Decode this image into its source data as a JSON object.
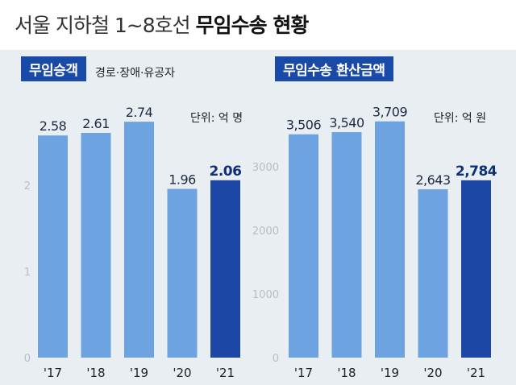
{
  "title": {
    "normal": "서울 지하철 1~8호선",
    "bold": "무임수송 현황"
  },
  "colors": {
    "bar": "#6ea3e1",
    "highlight": "#1c47a5",
    "tag": "#1a4aa8",
    "panel_bg": "#e9eef3",
    "axis_text": "#b8bec6"
  },
  "chart_data": [
    {
      "type": "bar",
      "title": "무임승객",
      "subtitle": "경로·장애·유공자",
      "unit": "단위: 억 명",
      "categories": [
        "'17",
        "'18",
        "'19",
        "'20",
        "'21"
      ],
      "values": [
        2.58,
        2.61,
        2.74,
        1.96,
        2.06
      ],
      "value_labels": [
        "2.58",
        "2.61",
        "2.74",
        "1.96",
        "2.06"
      ],
      "highlight_index": 4,
      "yticks": [
        0,
        1,
        2
      ],
      "ylim": [
        0,
        2.9
      ],
      "grid": false
    },
    {
      "type": "bar",
      "title": "무임수송 환산금액",
      "subtitle": "",
      "unit": "단위: 억 원",
      "categories": [
        "'17",
        "'18",
        "'19",
        "'20",
        "'21"
      ],
      "values": [
        3506,
        3540,
        3709,
        2643,
        2784
      ],
      "value_labels": [
        "3,506",
        "3,540",
        "3,709",
        "2,643",
        "2,784"
      ],
      "highlight_index": 4,
      "yticks": [
        0,
        1000,
        2000,
        3000
      ],
      "ylim": [
        0,
        3920
      ],
      "grid": false
    }
  ]
}
